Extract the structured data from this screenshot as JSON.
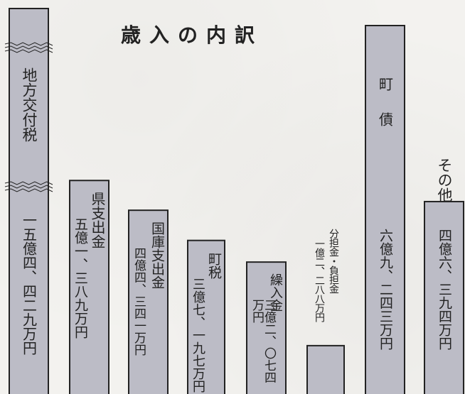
{
  "title": "歳入の内訳",
  "chart_data": {
    "type": "bar",
    "title": "歳入の内訳",
    "bar_color": "#bcbcc6",
    "border_color": "#222222",
    "categories": [
      "地方交付税",
      "県支出金",
      "国庫支出金",
      "町税",
      "繰入金",
      "分担金・負担金",
      "町債",
      "その他"
    ],
    "amount_labels": [
      "一五億四、四二九万円",
      "五億一、三八九万円",
      "四億四、三四一万円",
      "三億七、一九七万円",
      "三億二、〇七四万円",
      "一億二、二八八万円",
      "六億九、二四三万円",
      "四億六、三九四万円"
    ],
    "values": [
      154429,
      51389,
      44341,
      37197,
      32074,
      12288,
      69243,
      46394
    ],
    "unit": "万円",
    "axis_break": [
      "地方交付税"
    ]
  }
}
